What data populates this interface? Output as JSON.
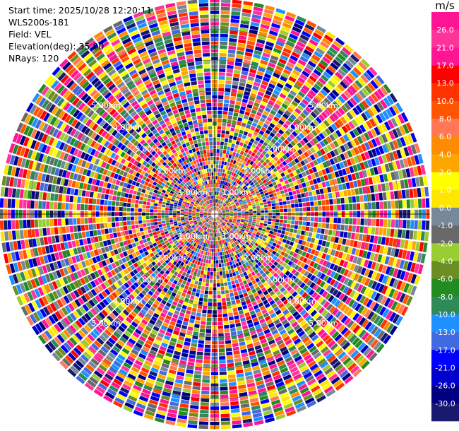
{
  "header": {
    "start_time": "Start time: 2025/10/28 12:20:11",
    "instrument": "WLS200s-181",
    "field": "Field: VEL",
    "elevation": "Elevation(deg): 35.00",
    "nrays": "NRays: 120"
  },
  "chart_data": {
    "type": "heatmap",
    "subtype": "ppi-polar",
    "field": "VEL",
    "elevation_deg": 35.0,
    "n_rays": 120,
    "max_range_km": 7.0,
    "range_ring_labels": [
      "1.00km",
      "2.00km",
      "3.00km",
      "4.00km",
      "5.00km"
    ],
    "colorbar": {
      "unit": "m/s",
      "tick_labels": [
        "26.0",
        "21.0",
        "17.0",
        "13.0",
        "10.0",
        "8.0",
        "6.0",
        "4.0",
        "2.0",
        "1.0",
        "0.0",
        "-1.0",
        "-2.0",
        "-4.0",
        "-6.0",
        "-8.0",
        "-10.0",
        "-13.0",
        "-17.0",
        "-21.0",
        "-26.0",
        "-30.0"
      ],
      "colors": [
        "#ff1493",
        "#ff3399",
        "#ff1493",
        "#ff0000",
        "#ff3300",
        "#ff5500",
        "#ff7755",
        "#ff8c00",
        "#ffa500",
        "#ffff00",
        "#ffe600",
        "#778899",
        "#696969",
        "#9acd32",
        "#6b8e23",
        "#228b22",
        "#2e8b57",
        "#1e90ff",
        "#4169e1",
        "#0000ff",
        "#0000cd",
        "#000080",
        "#191970"
      ]
    }
  }
}
